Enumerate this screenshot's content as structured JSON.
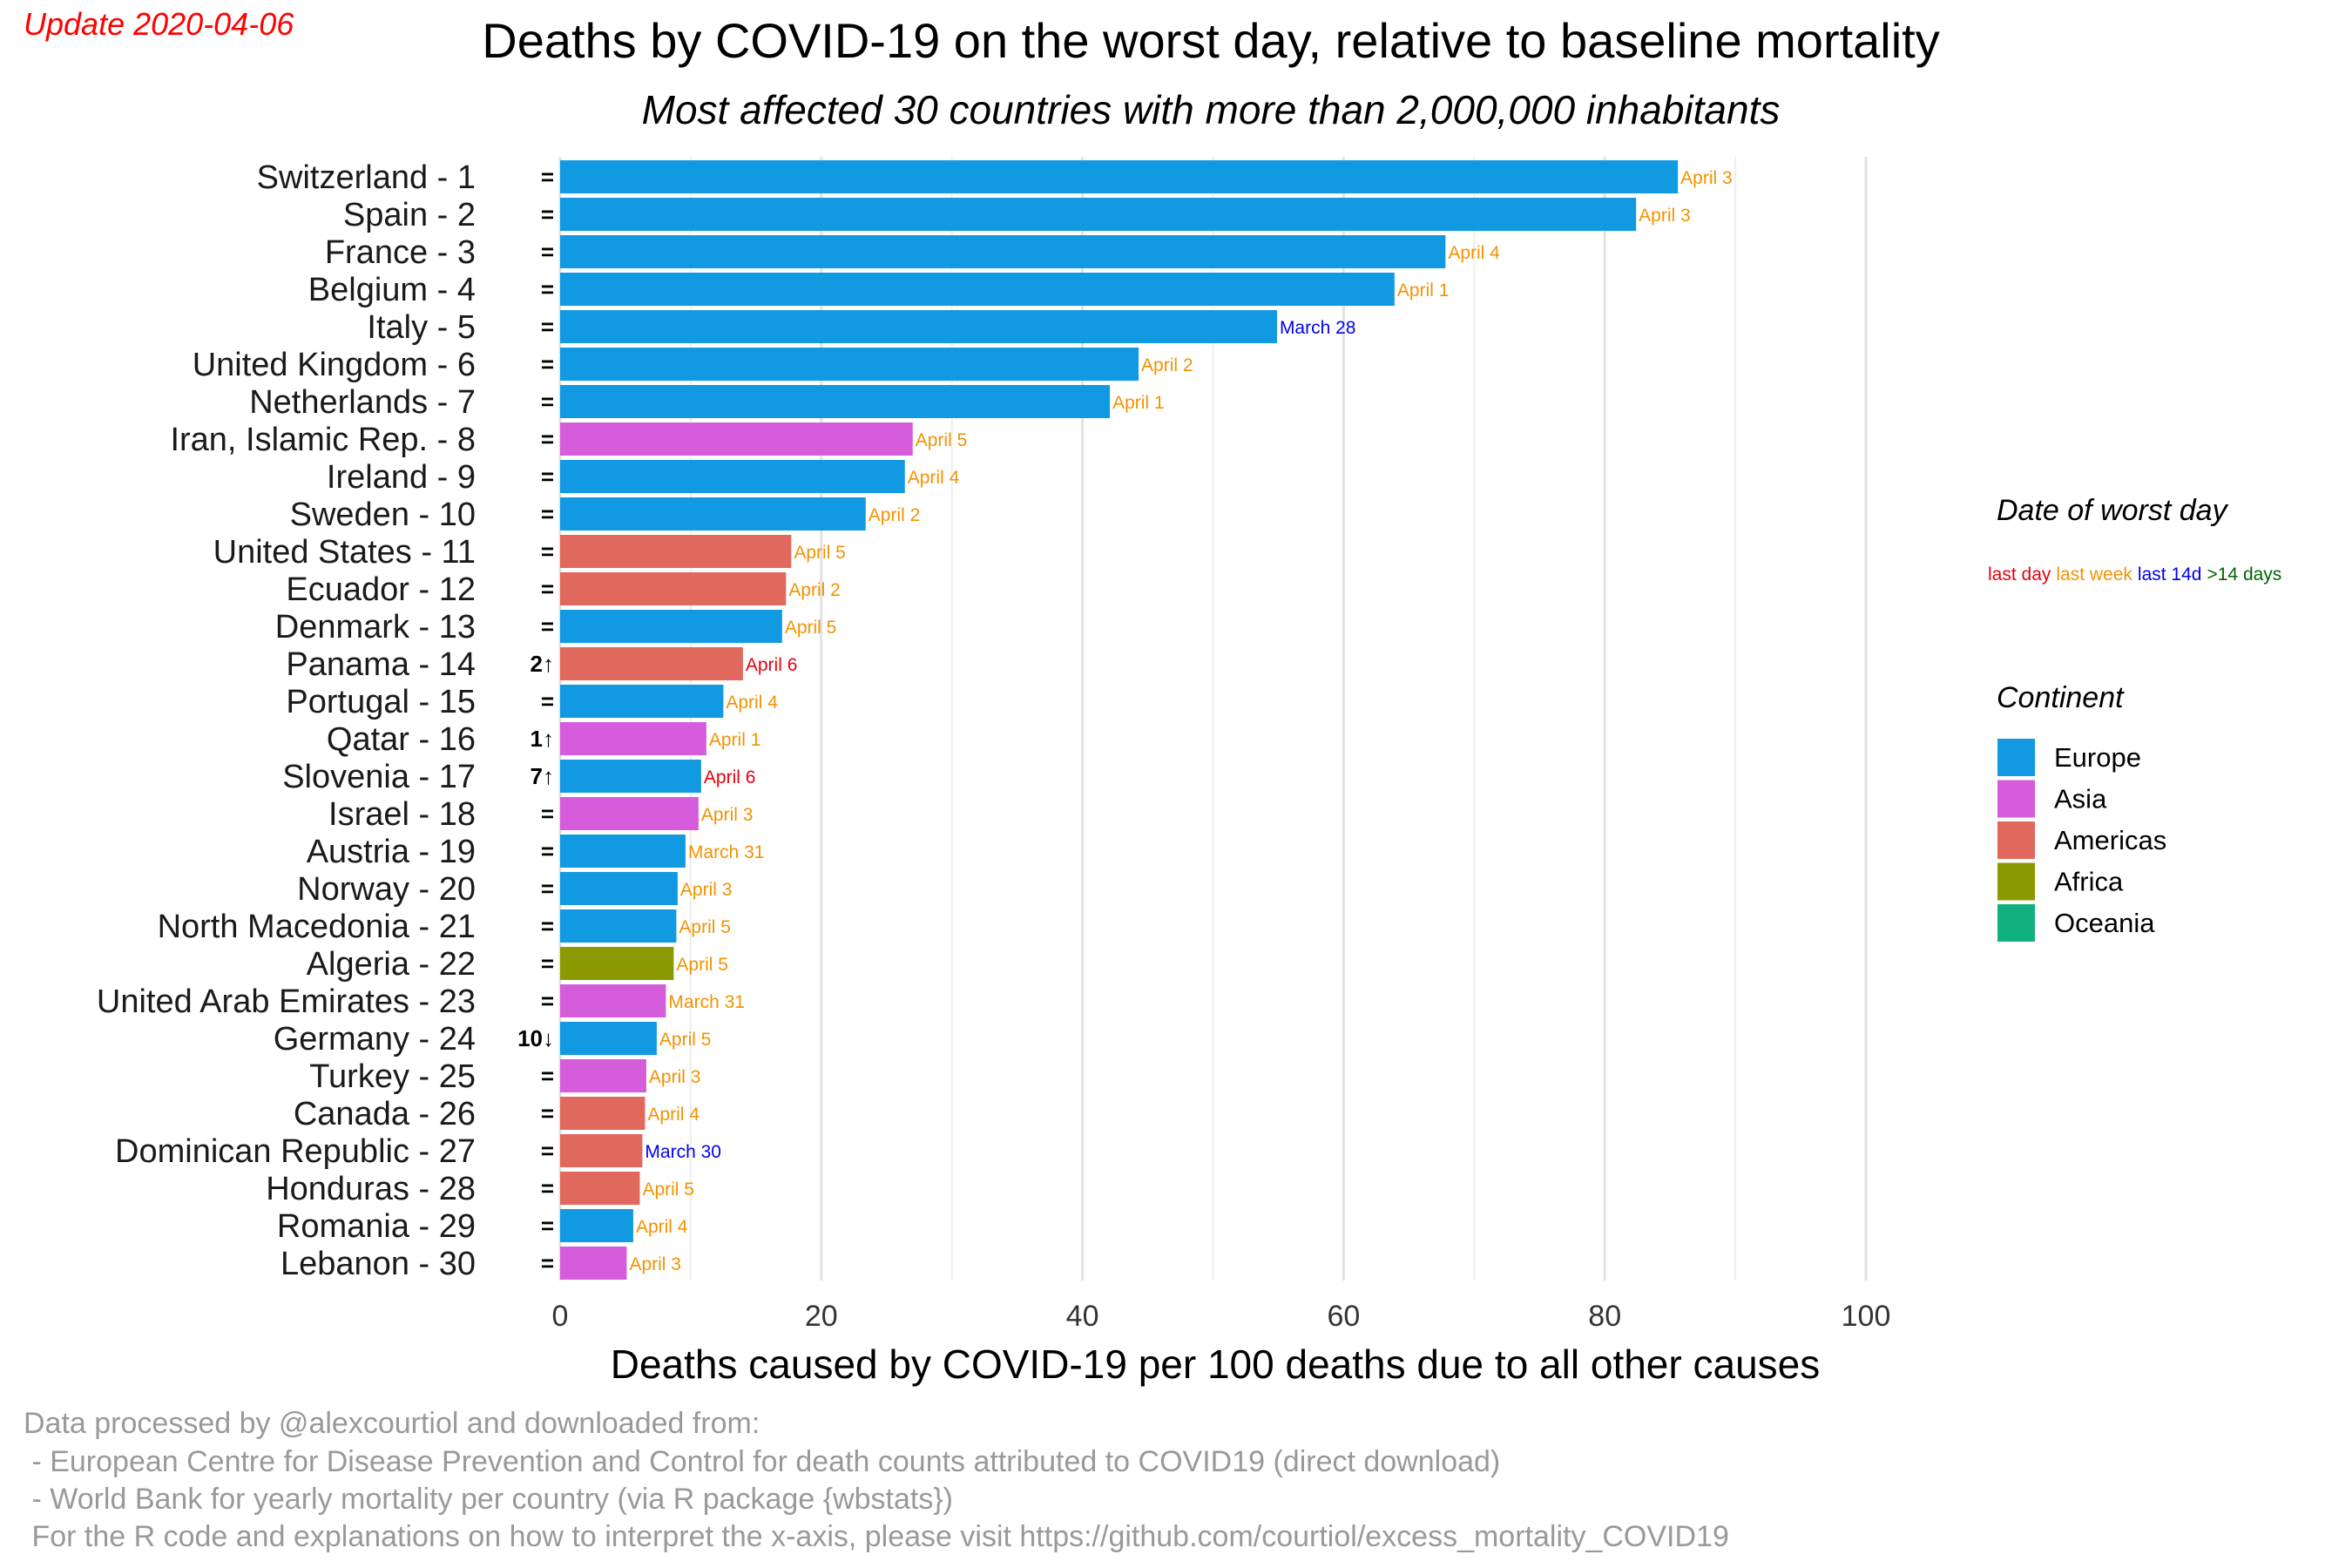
{
  "update_text": "Update 2020-04-06",
  "chart_data": {
    "type": "bar",
    "orientation": "horizontal",
    "title": "Deaths by COVID-19 on the worst day, relative to baseline mortality",
    "subtitle": "Most affected 30 countries with more than 2,000,000 inhabitants",
    "xlabel": "Deaths caused by COVID-19 per 100 deaths due to all other causes",
    "xlim": [
      0,
      100
    ],
    "xticks": [
      0,
      20,
      40,
      60,
      80,
      100
    ],
    "grid": true,
    "categories": [
      {
        "label": "Switzerland - 1",
        "value": 85.6,
        "change": "=",
        "date": "April 3",
        "recency": "last week",
        "continent": "Europe"
      },
      {
        "label": "Spain - 2",
        "value": 82.4,
        "change": "=",
        "date": "April 3",
        "recency": "last week",
        "continent": "Europe"
      },
      {
        "label": "France - 3",
        "value": 67.8,
        "change": "=",
        "date": "April 4",
        "recency": "last week",
        "continent": "Europe"
      },
      {
        "label": "Belgium - 4",
        "value": 63.9,
        "change": "=",
        "date": "April 1",
        "recency": "last week",
        "continent": "Europe"
      },
      {
        "label": "Italy - 5",
        "value": 54.9,
        "change": "=",
        "date": "March 28",
        "recency": "last 14d",
        "continent": "Europe"
      },
      {
        "label": "United Kingdom - 6",
        "value": 44.3,
        "change": "=",
        "date": "April 2",
        "recency": "last week",
        "continent": "Europe"
      },
      {
        "label": "Netherlands - 7",
        "value": 42.1,
        "change": "=",
        "date": "April 1",
        "recency": "last week",
        "continent": "Europe"
      },
      {
        "label": "Iran, Islamic Rep. - 8",
        "value": 27.0,
        "change": "=",
        "date": "April 5",
        "recency": "last week",
        "continent": "Asia"
      },
      {
        "label": "Ireland - 9",
        "value": 26.4,
        "change": "=",
        "date": "April 4",
        "recency": "last week",
        "continent": "Europe"
      },
      {
        "label": "Sweden - 10",
        "value": 23.4,
        "change": "=",
        "date": "April 2",
        "recency": "last week",
        "continent": "Europe"
      },
      {
        "label": "United States - 11",
        "value": 17.7,
        "change": "=",
        "date": "April 5",
        "recency": "last week",
        "continent": "Americas"
      },
      {
        "label": "Ecuador - 12",
        "value": 17.3,
        "change": "=",
        "date": "April 2",
        "recency": "last week",
        "continent": "Americas"
      },
      {
        "label": "Denmark - 13",
        "value": 17.0,
        "change": "=",
        "date": "April 5",
        "recency": "last week",
        "continent": "Europe"
      },
      {
        "label": "Panama - 14",
        "value": 14.0,
        "change": "2↑",
        "date": "April 6",
        "recency": "last day",
        "continent": "Americas"
      },
      {
        "label": "Portugal - 15",
        "value": 12.5,
        "change": "=",
        "date": "April 4",
        "recency": "last week",
        "continent": "Europe"
      },
      {
        "label": "Qatar - 16",
        "value": 11.2,
        "change": "1↑",
        "date": "April 1",
        "recency": "last week",
        "continent": "Asia"
      },
      {
        "label": "Slovenia - 17",
        "value": 10.8,
        "change": "7↑",
        "date": "April 6",
        "recency": "last day",
        "continent": "Europe"
      },
      {
        "label": "Israel - 18",
        "value": 10.6,
        "change": "=",
        "date": "April 3",
        "recency": "last week",
        "continent": "Asia"
      },
      {
        "label": "Austria - 19",
        "value": 9.6,
        "change": "=",
        "date": "March 31",
        "recency": "last week",
        "continent": "Europe"
      },
      {
        "label": "Norway - 20",
        "value": 9.0,
        "change": "=",
        "date": "April 3",
        "recency": "last week",
        "continent": "Europe"
      },
      {
        "label": "North Macedonia - 21",
        "value": 8.9,
        "change": "=",
        "date": "April 5",
        "recency": "last week",
        "continent": "Europe"
      },
      {
        "label": "Algeria - 22",
        "value": 8.7,
        "change": "=",
        "date": "April 5",
        "recency": "last week",
        "continent": "Africa"
      },
      {
        "label": "United Arab Emirates - 23",
        "value": 8.1,
        "change": "=",
        "date": "March 31",
        "recency": "last week",
        "continent": "Asia"
      },
      {
        "label": "Germany - 24",
        "value": 7.4,
        "change": "10↓",
        "date": "April 5",
        "recency": "last week",
        "continent": "Europe"
      },
      {
        "label": "Turkey - 25",
        "value": 6.6,
        "change": "=",
        "date": "April 3",
        "recency": "last week",
        "continent": "Asia"
      },
      {
        "label": "Canada - 26",
        "value": 6.5,
        "change": "=",
        "date": "April 4",
        "recency": "last week",
        "continent": "Americas"
      },
      {
        "label": "Dominican Republic - 27",
        "value": 6.3,
        "change": "=",
        "date": "March 30",
        "recency": "last 14d",
        "continent": "Americas"
      },
      {
        "label": "Honduras - 28",
        "value": 6.1,
        "change": "=",
        "date": "April 5",
        "recency": "last week",
        "continent": "Americas"
      },
      {
        "label": "Romania - 29",
        "value": 5.6,
        "change": "=",
        "date": "April 4",
        "recency": "last week",
        "continent": "Europe"
      },
      {
        "label": "Lebanon - 30",
        "value": 5.1,
        "change": "=",
        "date": "April 3",
        "recency": "last week",
        "continent": "Asia"
      }
    ],
    "legend": {
      "placement": "right",
      "date_title": "Date of worst day",
      "date_items": [
        {
          "label": "last day",
          "color": "#e8000b"
        },
        {
          "label": "last week",
          "color": "#f39200"
        },
        {
          "label": "last 14d",
          "color": "#0000ee"
        },
        {
          "label": ">14 days",
          "color": "#006400"
        }
      ],
      "continent_title": "Continent",
      "continent_items": [
        {
          "label": "Europe",
          "color": "#1199e2"
        },
        {
          "label": "Asia",
          "color": "#d55ddb"
        },
        {
          "label": "Americas",
          "color": "#e0685c"
        },
        {
          "label": "Africa",
          "color": "#8a9a00"
        },
        {
          "label": "Oceania",
          "color": "#13b07f"
        }
      ]
    }
  },
  "caption": [
    "Data processed by @alexcourtiol and downloaded from:",
    " - European Centre for Disease Prevention and Control for death counts attributed to COVID19 (direct download)",
    " - World Bank for yearly mortality per country (via R package {wbstats})",
    " For the R code and explanations on how to interpret the x-axis, please visit https://github.com/courtiol/excess_mortality_COVID19"
  ]
}
